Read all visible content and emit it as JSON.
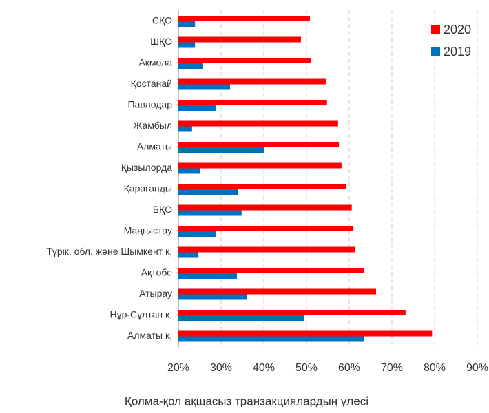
{
  "chart_data": {
    "type": "bar",
    "orientation": "horizontal",
    "x_label": "Қолма-қол ақшасыз транзакциялардың үлесі",
    "categories": [
      "СҚО",
      "ШҚО",
      "Ақмола",
      "Қостанай",
      "Павлодар",
      "Жамбыл",
      "Алматы",
      "Қызылорда",
      "Қарағанды",
      "БҚО",
      "Маңғыстау",
      "Түрік. обл. және Шымкент қ.",
      "Ақтөбе",
      "Атырау",
      "Нұр-Сұлтан қ.",
      "Алматы қ."
    ],
    "series": [
      {
        "name": "2020",
        "color": "#ff0000",
        "values": [
          50.8,
          48.7,
          51.1,
          54.5,
          54.8,
          57.4,
          57.6,
          58.2,
          59.2,
          60.6,
          61.0,
          61.3,
          63.5,
          66.3,
          73.2,
          79.4
        ]
      },
      {
        "name": "2019",
        "color": "#0070c0",
        "values": [
          23.9,
          23.9,
          25.8,
          32.1,
          28.7,
          23.2,
          40.0,
          25.0,
          34.0,
          34.8,
          28.7,
          24.7,
          33.7,
          36.0,
          49.4,
          63.5
        ]
      }
    ],
    "xlim": [
      20,
      90
    ],
    "xticks": [
      {
        "value": 20,
        "label": "20%"
      },
      {
        "value": 30,
        "label": "30%"
      },
      {
        "value": 40,
        "label": "40%"
      },
      {
        "value": 50,
        "label": "50%"
      },
      {
        "value": 60,
        "label": "60%"
      },
      {
        "value": 70,
        "label": "70%"
      },
      {
        "value": 80,
        "label": "80%"
      },
      {
        "value": 90,
        "label": "90%"
      }
    ],
    "grid": true,
    "legend": "upper right"
  }
}
